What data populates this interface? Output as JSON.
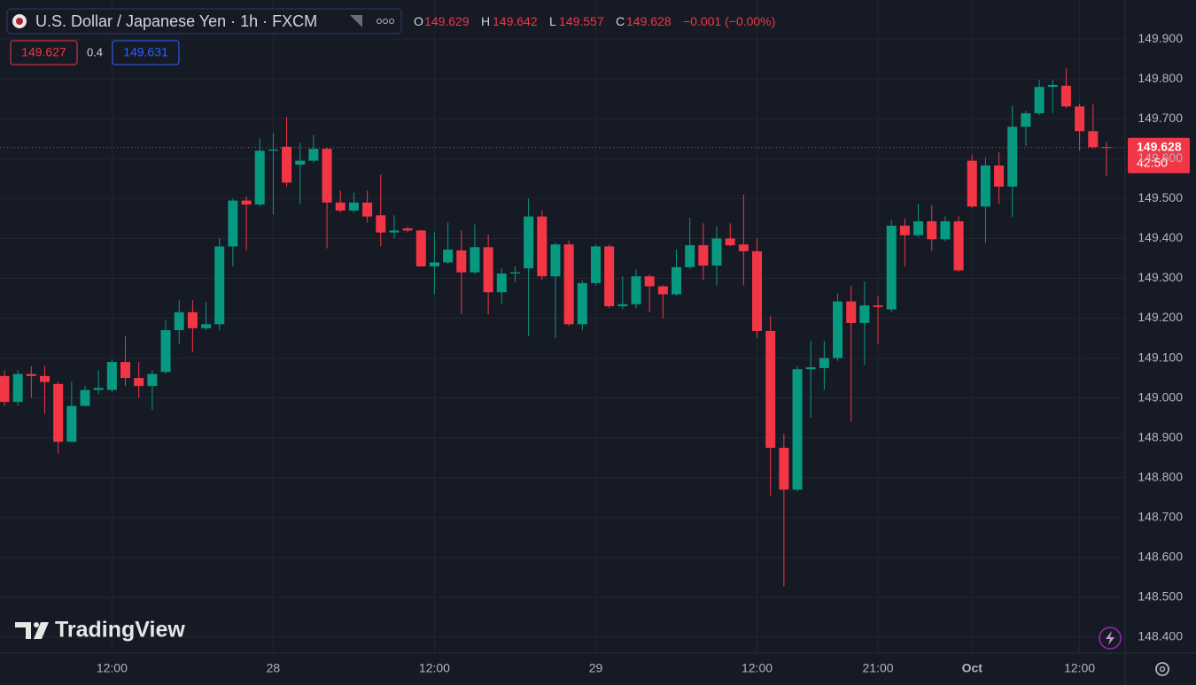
{
  "header": {
    "title": "U.S. Dollar / Japanese Yen · 1h · FXCM",
    "open_label": "O",
    "open": 149.629,
    "high_label": "H",
    "high": 149.642,
    "low_label": "L",
    "low": 149.557,
    "close_label": "C",
    "close": 149.628,
    "change": "−0.001 (−0.00%)",
    "bid": 149.627,
    "spread": 0.4,
    "ask": 149.631
  },
  "branding": "TradingView",
  "chart_data": {
    "type": "candlestick",
    "categories": [
      null,
      null,
      null,
      null,
      null,
      null,
      null,
      null,
      "12:00",
      null,
      null,
      null,
      null,
      null,
      null,
      null,
      null,
      null,
      null,
      null,
      "28",
      null,
      null,
      null,
      null,
      null,
      null,
      null,
      null,
      null,
      null,
      null,
      "12:00",
      null,
      null,
      null,
      null,
      null,
      null,
      null,
      null,
      null,
      null,
      null,
      "29",
      null,
      null,
      null,
      null,
      null,
      null,
      null,
      null,
      null,
      null,
      null,
      "12:00",
      null,
      null,
      null,
      null,
      null,
      null,
      null,
      null,
      "21:00",
      null,
      null,
      null,
      null,
      null,
      null,
      "Oct",
      null,
      null,
      null,
      null,
      null,
      null,
      null,
      "12:00",
      null,
      null
    ],
    "open": [
      149.055,
      148.99,
      149.06,
      149.055,
      149.035,
      148.89,
      148.98,
      149.02,
      149.02,
      149.09,
      149.05,
      149.03,
      149.065,
      149.17,
      149.215,
      149.175,
      149.185,
      149.38,
      149.495,
      149.485,
      149.62,
      149.63,
      149.585,
      149.595,
      149.625,
      149.49,
      149.47,
      149.49,
      149.458,
      149.415,
      149.425,
      149.42,
      149.33,
      149.34,
      149.37,
      149.315,
      149.378,
      149.265,
      149.312,
      149.325,
      149.455,
      149.305,
      149.385,
      149.185,
      149.288,
      149.38,
      149.23,
      149.235,
      149.305,
      149.28,
      149.26,
      149.328,
      149.383,
      149.332,
      149.4,
      149.385,
      149.368,
      149.168,
      148.875,
      148.77,
      149.072,
      149.075,
      149.1,
      149.242,
      149.188,
      149.232,
      149.222,
      149.432,
      149.408,
      149.443,
      149.398,
      149.443,
      149.595,
      149.48,
      149.583,
      149.53,
      149.68,
      149.714,
      149.78,
      149.783,
      149.731,
      149.669,
      149.629
    ],
    "high": [
      149.07,
      149.07,
      149.08,
      149.08,
      149.04,
      149.04,
      149.03,
      149.07,
      149.095,
      149.155,
      149.09,
      149.07,
      149.195,
      149.245,
      149.245,
      149.24,
      149.4,
      149.5,
      149.505,
      149.65,
      149.665,
      149.705,
      149.64,
      149.66,
      149.628,
      149.52,
      149.515,
      149.52,
      149.56,
      149.458,
      149.43,
      149.422,
      149.415,
      149.44,
      149.42,
      149.435,
      149.41,
      149.325,
      149.33,
      149.5,
      149.47,
      149.39,
      149.395,
      149.295,
      149.385,
      149.385,
      149.305,
      149.322,
      149.31,
      149.283,
      149.372,
      149.452,
      149.438,
      149.43,
      149.438,
      149.51,
      149.4,
      149.205,
      148.91,
      149.08,
      149.143,
      149.143,
      149.262,
      149.282,
      149.292,
      149.255,
      149.447,
      149.45,
      149.487,
      149.483,
      149.456,
      149.456,
      149.61,
      149.603,
      149.616,
      149.733,
      149.72,
      149.798,
      149.798,
      149.826,
      149.738,
      149.736,
      149.642
    ],
    "low": [
      148.98,
      148.98,
      149.0,
      148.96,
      148.86,
      148.89,
      148.98,
      149.01,
      149.015,
      149.03,
      149.0,
      148.97,
      149.06,
      149.135,
      149.115,
      149.17,
      149.17,
      149.33,
      149.37,
      149.48,
      149.46,
      149.53,
      149.485,
      149.59,
      149.375,
      149.465,
      149.465,
      149.44,
      149.38,
      149.4,
      149.415,
      149.33,
      149.26,
      149.335,
      149.21,
      149.31,
      149.21,
      149.235,
      149.29,
      149.155,
      149.295,
      149.15,
      149.18,
      149.17,
      149.282,
      149.225,
      149.222,
      149.225,
      149.215,
      149.2,
      149.256,
      149.323,
      149.296,
      149.283,
      149.38,
      149.283,
      149.15,
      148.755,
      148.528,
      148.766,
      148.95,
      149.02,
      149.093,
      148.94,
      149.083,
      149.135,
      149.215,
      149.33,
      149.403,
      149.368,
      149.393,
      149.316,
      149.476,
      149.388,
      149.487,
      149.454,
      149.632,
      149.709,
      149.714,
      149.727,
      149.62,
      149.625,
      149.557
    ],
    "close": [
      148.99,
      149.06,
      149.055,
      149.04,
      148.89,
      148.98,
      149.02,
      149.025,
      149.09,
      149.05,
      149.03,
      149.06,
      149.17,
      149.215,
      149.175,
      149.185,
      149.38,
      149.495,
      149.485,
      149.62,
      149.623,
      149.54,
      149.595,
      149.625,
      149.49,
      149.47,
      149.49,
      149.455,
      149.415,
      149.42,
      149.42,
      149.33,
      149.34,
      149.372,
      149.315,
      149.378,
      149.265,
      149.312,
      149.315,
      149.455,
      149.305,
      149.385,
      149.185,
      149.288,
      149.38,
      149.23,
      149.235,
      149.305,
      149.28,
      149.26,
      149.328,
      149.383,
      149.332,
      149.4,
      149.383,
      149.368,
      149.168,
      148.875,
      148.77,
      149.072,
      149.077,
      149.1,
      149.242,
      149.188,
      149.232,
      149.228,
      149.432,
      149.408,
      149.443,
      149.398,
      149.443,
      149.32,
      149.48,
      149.583,
      149.53,
      149.68,
      149.714,
      149.78,
      149.785,
      149.731,
      149.669,
      149.629,
      149.628
    ],
    "up_color": "#089981",
    "down_color": "#f23645",
    "last_price": 149.628,
    "countdown": "42:50",
    "ylim": [
      148.36,
      149.998
    ],
    "yticks": [
      {
        "value": 149.9,
        "label": "149.900"
      },
      {
        "value": 149.8,
        "label": "149.800"
      },
      {
        "value": 149.7,
        "label": "149.700"
      },
      {
        "value": 149.6,
        "label": "149.600"
      },
      {
        "value": 149.5,
        "label": "149.500"
      },
      {
        "value": 149.4,
        "label": "149.400"
      },
      {
        "value": 149.3,
        "label": "149.300"
      },
      {
        "value": 149.2,
        "label": "149.200"
      },
      {
        "value": 149.1,
        "label": "149.100"
      },
      {
        "value": 149.0,
        "label": "149.000"
      },
      {
        "value": 148.9,
        "label": "148.900"
      },
      {
        "value": 148.8,
        "label": "148.800"
      },
      {
        "value": 148.7,
        "label": "148.700"
      },
      {
        "value": 148.6,
        "label": "148.600"
      },
      {
        "value": 148.5,
        "label": "148.500"
      },
      {
        "value": 148.4,
        "label": "148.400"
      }
    ],
    "grid": true
  }
}
